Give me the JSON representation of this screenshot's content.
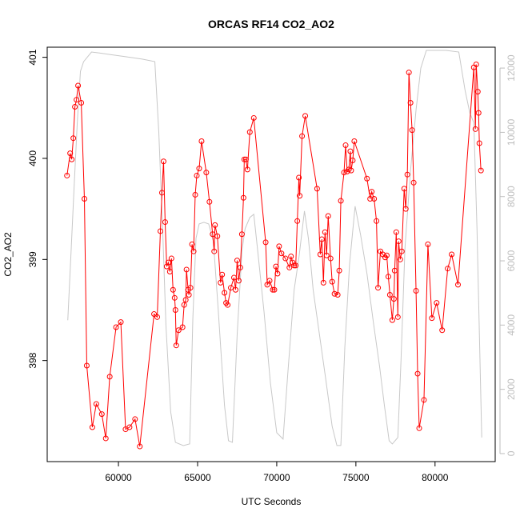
{
  "chart_data": {
    "type": "line",
    "title": "ORCAS RF14 CO2_AO2",
    "xlabel": "UTC Seconds",
    "ylabel": "CO2_AO2",
    "xlim": [
      55500,
      83800
    ],
    "ylim": [
      397.0,
      401.1
    ],
    "y2lim": [
      -250,
      12650
    ],
    "x_ticks": [
      60000,
      65000,
      70000,
      75000,
      80000
    ],
    "y_ticks": [
      398,
      399,
      400,
      401
    ],
    "y2_ticks": [
      0,
      2000,
      4000,
      6000,
      8000,
      10000,
      12000
    ],
    "grid": false,
    "legend": "none",
    "colors": {
      "primary": "#ff0000",
      "secondary": "#c8c8c8",
      "axis": "#000000",
      "axis2": "#bdbdbd"
    },
    "series": [
      {
        "axis": "left",
        "style": "line+points",
        "points": [
          [
            56750,
            399.83
          ],
          [
            56950,
            400.05
          ],
          [
            57050,
            399.99
          ],
          [
            57150,
            400.2
          ],
          [
            57250,
            400.51
          ],
          [
            57350,
            400.58
          ],
          [
            57450,
            400.72
          ],
          [
            57650,
            400.55
          ],
          [
            57850,
            399.6
          ],
          [
            58000,
            397.95
          ],
          [
            58350,
            397.34
          ],
          [
            58600,
            397.57
          ],
          [
            58950,
            397.47
          ],
          [
            59200,
            397.23
          ],
          [
            59450,
            397.84
          ],
          [
            59850,
            398.33
          ],
          [
            60150,
            398.38
          ],
          [
            60450,
            397.32
          ],
          [
            60700,
            397.34
          ],
          [
            61050,
            397.42
          ],
          [
            61350,
            397.15
          ],
          [
            62250,
            398.46
          ],
          [
            62450,
            398.43
          ],
          [
            62650,
            399.28
          ],
          [
            62750,
            399.66
          ],
          [
            62850,
            399.97
          ],
          [
            62950,
            399.37
          ],
          [
            63050,
            398.93
          ],
          [
            63150,
            398.97
          ],
          [
            63250,
            398.88
          ],
          [
            63350,
            399.01
          ],
          [
            63450,
            398.7
          ],
          [
            63550,
            398.62
          ],
          [
            63600,
            398.5
          ],
          [
            63650,
            398.15
          ],
          [
            63800,
            398.3
          ],
          [
            64050,
            398.33
          ],
          [
            64150,
            398.55
          ],
          [
            64250,
            398.6
          ],
          [
            64300,
            398.9
          ],
          [
            64400,
            398.7
          ],
          [
            64450,
            398.65
          ],
          [
            64550,
            398.72
          ],
          [
            64650,
            399.15
          ],
          [
            64750,
            399.08
          ],
          [
            64850,
            399.64
          ],
          [
            64950,
            399.83
          ],
          [
            65100,
            399.9
          ],
          [
            65250,
            400.17
          ],
          [
            65550,
            399.86
          ],
          [
            65750,
            399.57
          ],
          [
            65950,
            399.25
          ],
          [
            66050,
            399.08
          ],
          [
            66100,
            399.34
          ],
          [
            66250,
            399.23
          ],
          [
            66450,
            398.77
          ],
          [
            66550,
            398.85
          ],
          [
            66700,
            398.67
          ],
          [
            66800,
            398.57
          ],
          [
            66900,
            398.55
          ],
          [
            67100,
            398.72
          ],
          [
            67300,
            398.82
          ],
          [
            67400,
            398.7
          ],
          [
            67500,
            398.99
          ],
          [
            67600,
            398.79
          ],
          [
            67700,
            398.92
          ],
          [
            67800,
            399.25
          ],
          [
            67900,
            399.61
          ],
          [
            67950,
            399.99
          ],
          [
            68050,
            399.99
          ],
          [
            68150,
            399.89
          ],
          [
            68300,
            400.26
          ],
          [
            68550,
            400.4
          ],
          [
            69300,
            399.17
          ],
          [
            69400,
            398.75
          ],
          [
            69550,
            398.79
          ],
          [
            69750,
            398.7
          ],
          [
            69850,
            398.7
          ],
          [
            69950,
            398.93
          ],
          [
            70050,
            398.86
          ],
          [
            70150,
            399.13
          ],
          [
            70300,
            399.06
          ],
          [
            70550,
            399.01
          ],
          [
            70800,
            398.92
          ],
          [
            70900,
            399.03
          ],
          [
            71000,
            398.97
          ],
          [
            71100,
            398.94
          ],
          [
            71200,
            398.94
          ],
          [
            71300,
            399.38
          ],
          [
            71400,
            399.81
          ],
          [
            71450,
            399.63
          ],
          [
            71600,
            400.22
          ],
          [
            71800,
            400.42
          ],
          [
            72550,
            399.7
          ],
          [
            72750,
            399.05
          ],
          [
            72850,
            399.2
          ],
          [
            72950,
            398.77
          ],
          [
            73050,
            399.27
          ],
          [
            73150,
            399.04
          ],
          [
            73250,
            399.43
          ],
          [
            73400,
            399.01
          ],
          [
            73500,
            398.78
          ],
          [
            73650,
            398.66
          ],
          [
            73850,
            398.65
          ],
          [
            73950,
            398.89
          ],
          [
            74050,
            399.58
          ],
          [
            74250,
            399.86
          ],
          [
            74350,
            400.13
          ],
          [
            74450,
            399.87
          ],
          [
            74550,
            399.89
          ],
          [
            74650,
            400.07
          ],
          [
            74700,
            399.88
          ],
          [
            74800,
            399.98
          ],
          [
            74900,
            400.17
          ],
          [
            75700,
            399.8
          ],
          [
            75900,
            399.6
          ],
          [
            76000,
            399.67
          ],
          [
            76150,
            399.6
          ],
          [
            76300,
            399.38
          ],
          [
            76400,
            398.72
          ],
          [
            76550,
            399.08
          ],
          [
            76700,
            399.05
          ],
          [
            76850,
            399.02
          ],
          [
            76950,
            399.04
          ],
          [
            77050,
            398.83
          ],
          [
            77150,
            398.65
          ],
          [
            77300,
            398.4
          ],
          [
            77400,
            398.61
          ],
          [
            77450,
            398.89
          ],
          [
            77550,
            399.27
          ],
          [
            77650,
            398.43
          ],
          [
            77700,
            399.18
          ],
          [
            77800,
            399.0
          ],
          [
            77900,
            399.08
          ],
          [
            78050,
            399.7
          ],
          [
            78150,
            399.5
          ],
          [
            78250,
            399.84
          ],
          [
            78350,
            400.85
          ],
          [
            78450,
            400.55
          ],
          [
            78550,
            400.28
          ],
          [
            78650,
            399.76
          ],
          [
            78800,
            398.69
          ],
          [
            78900,
            397.87
          ],
          [
            79000,
            397.33
          ],
          [
            79300,
            397.61
          ],
          [
            79550,
            399.15
          ],
          [
            79800,
            398.42
          ],
          [
            80100,
            398.57
          ],
          [
            80450,
            398.3
          ],
          [
            80800,
            398.91
          ],
          [
            81050,
            399.05
          ],
          [
            81450,
            398.75
          ],
          [
            82450,
            400.9
          ],
          [
            82550,
            400.29
          ],
          [
            82600,
            400.93
          ],
          [
            82700,
            400.66
          ],
          [
            82750,
            400.45
          ],
          [
            82800,
            400.15
          ],
          [
            82900,
            399.88
          ]
        ]
      },
      {
        "axis": "right",
        "style": "line",
        "points": [
          [
            56800,
            4150
          ],
          [
            57000,
            6200
          ],
          [
            57200,
            8300
          ],
          [
            57400,
            10300
          ],
          [
            57600,
            11900
          ],
          [
            57800,
            12200
          ],
          [
            58300,
            12500
          ],
          [
            58800,
            12470
          ],
          [
            59500,
            12420
          ],
          [
            60500,
            12350
          ],
          [
            61500,
            12280
          ],
          [
            62300,
            12200
          ],
          [
            62550,
            10000
          ],
          [
            62800,
            6900
          ],
          [
            63000,
            4000
          ],
          [
            63300,
            1300
          ],
          [
            63600,
            350
          ],
          [
            64100,
            250
          ],
          [
            64500,
            300
          ],
          [
            64700,
            4200
          ],
          [
            64900,
            6700
          ],
          [
            65100,
            7150
          ],
          [
            65400,
            7200
          ],
          [
            65700,
            7150
          ],
          [
            66000,
            6600
          ],
          [
            66300,
            4500
          ],
          [
            66700,
            1500
          ],
          [
            66950,
            400
          ],
          [
            67200,
            350
          ],
          [
            67500,
            3700
          ],
          [
            67800,
            6300
          ],
          [
            68000,
            7000
          ],
          [
            68300,
            7350
          ],
          [
            68550,
            7450
          ],
          [
            68800,
            6300
          ],
          [
            69200,
            4400
          ],
          [
            69600,
            2200
          ],
          [
            70000,
            650
          ],
          [
            70400,
            450
          ],
          [
            70700,
            2500
          ],
          [
            71100,
            5100
          ],
          [
            71400,
            6100
          ],
          [
            71750,
            7550
          ],
          [
            72000,
            6700
          ],
          [
            72300,
            5100
          ],
          [
            72700,
            3700
          ],
          [
            73100,
            2300
          ],
          [
            73500,
            850
          ],
          [
            73800,
            250
          ],
          [
            74050,
            250
          ],
          [
            74300,
            3300
          ],
          [
            74600,
            5900
          ],
          [
            74950,
            7700
          ],
          [
            75300,
            6800
          ],
          [
            75700,
            5600
          ],
          [
            76100,
            4100
          ],
          [
            76500,
            2700
          ],
          [
            76800,
            1500
          ],
          [
            77100,
            400
          ],
          [
            77300,
            300
          ],
          [
            77650,
            500
          ],
          [
            77850,
            2900
          ],
          [
            78100,
            6400
          ],
          [
            78450,
            8800
          ],
          [
            78800,
            10700
          ],
          [
            79100,
            12000
          ],
          [
            79450,
            12550
          ],
          [
            80000,
            12550
          ],
          [
            80700,
            12550
          ],
          [
            81500,
            12500
          ],
          [
            81900,
            11300
          ],
          [
            82200,
            10600
          ],
          [
            82450,
            10300
          ],
          [
            82650,
            7000
          ],
          [
            82950,
            500
          ]
        ]
      }
    ]
  }
}
